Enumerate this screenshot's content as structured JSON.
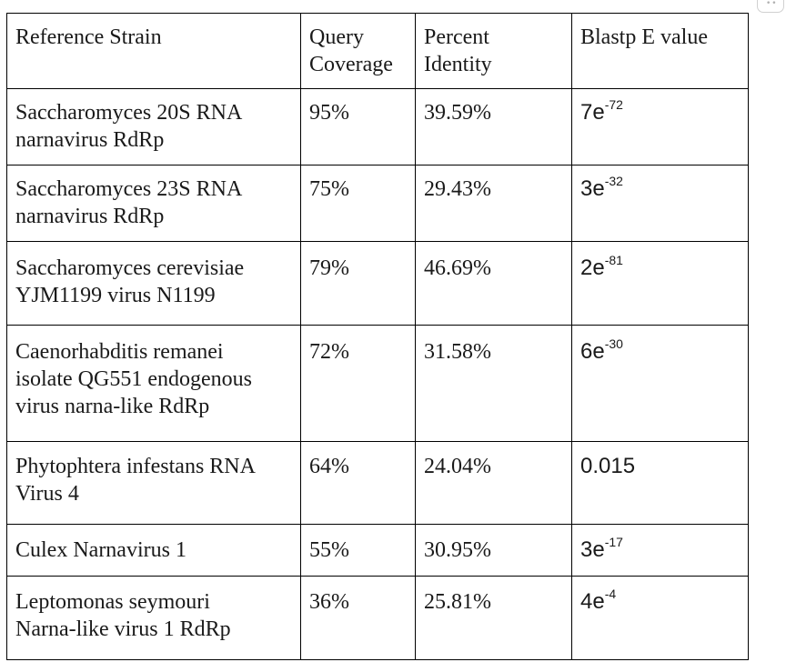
{
  "table": {
    "headers": {
      "strain": [
        "Reference Strain"
      ],
      "coverage": [
        "Query",
        "Coverage"
      ],
      "identity": [
        "Percent",
        "Identity"
      ],
      "evalue": [
        "Blastp E value"
      ]
    },
    "rows": [
      {
        "strain": [
          "Saccharomyces 20S RNA",
          "narnavirus RdRp"
        ],
        "coverage": "95%",
        "identity": "39.59%",
        "evalue_base": "7e",
        "evalue_exp": "-72"
      },
      {
        "strain": [
          "Saccharomyces 23S RNA",
          "narnavirus RdRp"
        ],
        "coverage": "75%",
        "identity": "29.43%",
        "evalue_base": "3e",
        "evalue_exp": "-32"
      },
      {
        "strain": [
          "Saccharomyces cerevisiae",
          "YJM1199 virus N1199"
        ],
        "coverage": "79%",
        "identity": "46.69%",
        "evalue_base": "2e",
        "evalue_exp": "-81"
      },
      {
        "strain": [
          "Caenorhabditis remanei",
          "isolate QG551 endogenous",
          "virus narna-like RdRp"
        ],
        "coverage": "72%",
        "identity": "31.58%",
        "evalue_base": "6e",
        "evalue_exp": "-30"
      },
      {
        "strain": [
          "Phytophtera infestans RNA",
          "Virus 4"
        ],
        "coverage": "64%",
        "identity": "24.04%",
        "evalue_base": "0.015",
        "evalue_exp": ""
      },
      {
        "strain": [
          "Culex Narnavirus 1"
        ],
        "coverage": "55%",
        "identity": "30.95%",
        "evalue_base": "3e",
        "evalue_exp": "-17"
      },
      {
        "strain": [
          "Leptomonas seymouri",
          "Narna-like virus 1 RdRp"
        ],
        "coverage": "36%",
        "identity": "25.81%",
        "evalue_base": "4e",
        "evalue_exp": "-4"
      }
    ]
  },
  "corner_handle": {
    "glyph": "••"
  }
}
